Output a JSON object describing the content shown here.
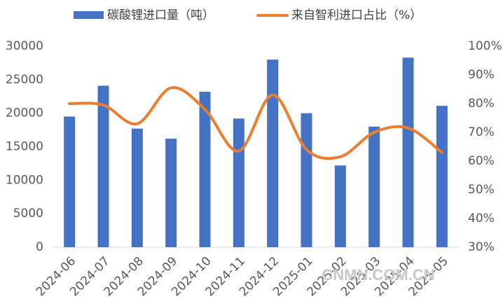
{
  "chart_data": {
    "type": "bar-line",
    "categories": [
      "2024-06",
      "2024-07",
      "2024-08",
      "2024-09",
      "2024-10",
      "2024-11",
      "2024-12",
      "2025-01",
      "2025-02",
      "2025-03",
      "2025-04",
      "2025-05"
    ],
    "series": [
      {
        "name": "碳酸锂进口量（吨）",
        "type": "bar",
        "color": "#4472c4",
        "values": [
          19500,
          24100,
          17700,
          16200,
          23200,
          19200,
          28000,
          20000,
          12200,
          18000,
          28300,
          21100
        ]
      },
      {
        "name": "来自智利进口占比（%）",
        "type": "line",
        "axis": "y2",
        "color": "#ed7d31",
        "values": [
          80,
          79.5,
          73,
          85.5,
          78,
          63.5,
          83,
          64,
          61.5,
          70,
          71.5,
          63
        ]
      }
    ],
    "ylim": [
      0,
      30000
    ],
    "yticks": [
      0,
      5000,
      10000,
      15000,
      20000,
      25000,
      30000
    ],
    "y2lim": [
      30,
      100
    ],
    "y2ticks": [
      {
        "value": 30,
        "label": "30%"
      },
      {
        "value": 40,
        "label": "40%"
      },
      {
        "value": 50,
        "label": "50%"
      },
      {
        "value": 60,
        "label": "60%"
      },
      {
        "value": 70,
        "label": "70%"
      },
      {
        "value": 80,
        "label": "80%"
      },
      {
        "value": 90,
        "label": "90%"
      },
      {
        "value": 100,
        "label": "100%"
      }
    ],
    "legend": "top",
    "watermark": "CNMN.COM.CN"
  }
}
